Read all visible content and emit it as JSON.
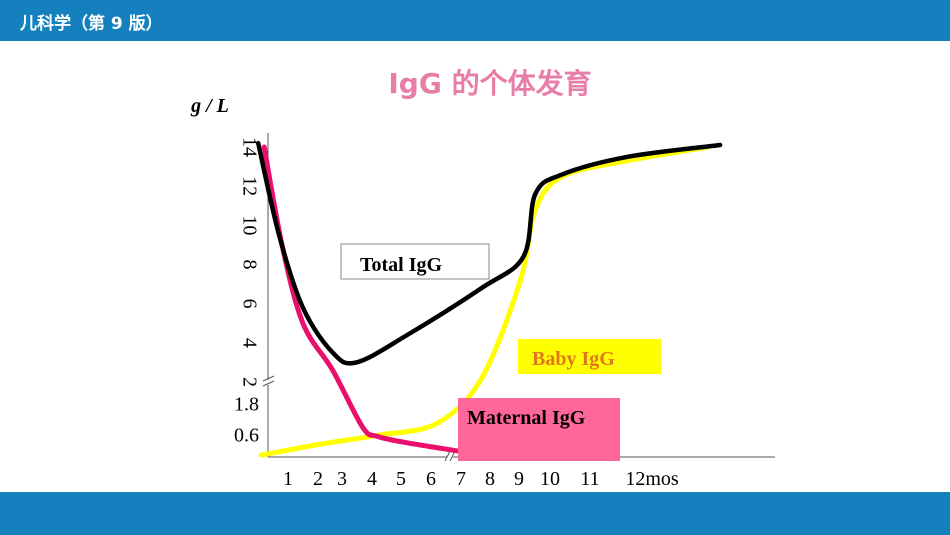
{
  "header": {
    "title": "儿科学（第 9 版）"
  },
  "slide": {
    "title": "IgG 的个体发育"
  },
  "colors": {
    "bar": "#1480bd",
    "title": "#e87ea8",
    "total": "#000000",
    "maternal": "#ea0f6e",
    "baby": "#ffff00",
    "maternal_box": "#ff6699",
    "baby_label": "#e07818"
  },
  "chart_data": {
    "type": "line",
    "ylabel": "g / L",
    "upper_y_ticks": [
      "14",
      "12",
      "10",
      "8",
      "6",
      "4",
      "2"
    ],
    "lower_y_ticks": [
      "1.8",
      "0.6"
    ],
    "x_ticks": [
      "1",
      "2",
      "3",
      "4",
      "5",
      "6",
      "7",
      "8",
      "9",
      "10",
      "11",
      "12mos"
    ],
    "axis_break": true,
    "series": [
      {
        "name": "Total IgG",
        "color": "#000000",
        "points": [
          [
            0,
            14.2
          ],
          [
            0.7,
            9.5
          ],
          [
            1.5,
            5.8
          ],
          [
            2.5,
            3.5
          ],
          [
            3.3,
            3.0
          ],
          [
            5,
            4.4
          ],
          [
            7.5,
            6.8
          ],
          [
            8.9,
            8.4
          ],
          [
            9.3,
            11.6
          ],
          [
            10.2,
            12.6
          ],
          [
            12.4,
            13.5
          ],
          [
            15.5,
            14.1
          ]
        ]
      },
      {
        "name": "Maternal IgG",
        "color": "#ea0f6e",
        "points": [
          [
            0.2,
            14.0
          ],
          [
            0.8,
            9.0
          ],
          [
            1.5,
            5.0
          ],
          [
            2.5,
            2.6
          ],
          [
            3.5,
            0.8
          ],
          [
            4.0,
            0.55
          ],
          [
            5.0,
            0.38
          ],
          [
            6.7,
            0.16
          ]
        ]
      },
      {
        "name": "Baby IgG",
        "color": "#ffff00",
        "points": [
          [
            0.1,
            0.05
          ],
          [
            2.0,
            0.33
          ],
          [
            4.0,
            0.58
          ],
          [
            6.0,
            0.9
          ],
          [
            7.5,
            2.2
          ],
          [
            8.8,
            7.2
          ],
          [
            9.3,
            10.8
          ],
          [
            10.2,
            12.5
          ],
          [
            12.4,
            13.3
          ],
          [
            15.1,
            14.0
          ]
        ]
      }
    ],
    "labels": {
      "total": "Total IgG",
      "baby": "Baby IgG",
      "maternal": "Maternal IgG"
    }
  }
}
